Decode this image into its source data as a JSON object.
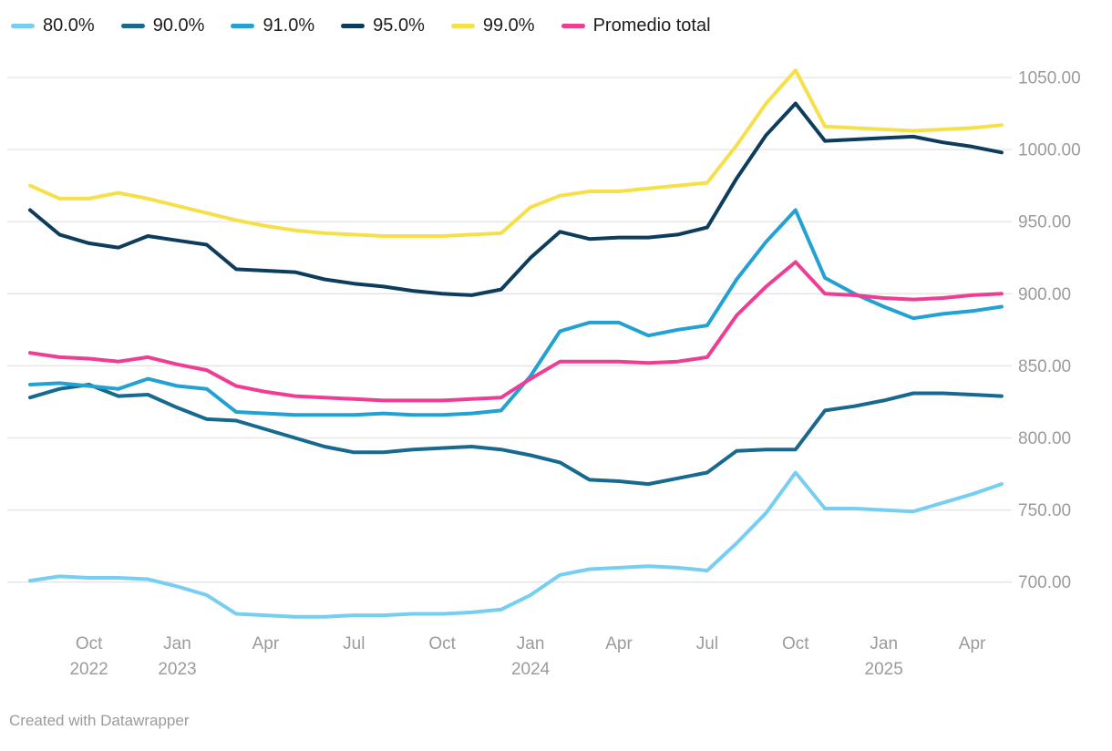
{
  "legend": {
    "items": [
      {
        "label": "80.0%",
        "color": "#76CEF3"
      },
      {
        "label": "90.0%",
        "color": "#17698F"
      },
      {
        "label": "91.0%",
        "color": "#22A1D3"
      },
      {
        "label": "95.0%",
        "color": "#0D3C5C"
      },
      {
        "label": "99.0%",
        "color": "#F6E04A"
      },
      {
        "label": "Promedio total",
        "color": "#EE3D93"
      }
    ]
  },
  "credit": "Created with Datawrapper",
  "style": {
    "gridline_color": "#e4e4e4",
    "axis_label_color": "#9b9b9b",
    "legend_text_color": "#1d1d1d",
    "background": "#ffffff"
  },
  "chart_data": {
    "type": "line",
    "title": "",
    "xlabel": "",
    "ylabel": "",
    "grid": true,
    "legend_position": "top-left",
    "ylim": [
      680,
      1060
    ],
    "y_tick_values": [
      700,
      750,
      800,
      850,
      900,
      950,
      1000,
      1050
    ],
    "y_tick_labels": [
      "700.00",
      "750.00",
      "800.00",
      "850.00",
      "900.00",
      "950.00",
      "1000.00",
      "1050.00"
    ],
    "categories": [
      "Aug 2022",
      "Sep 2022",
      "Oct 2022",
      "Nov 2022",
      "Dec 2022",
      "Jan 2023",
      "Feb 2023",
      "Mar 2023",
      "Apr 2023",
      "May 2023",
      "Jun 2023",
      "Jul 2023",
      "Aug 2023",
      "Sep 2023",
      "Oct 2023",
      "Nov 2023",
      "Dec 2023",
      "Jan 2024",
      "Feb 2024",
      "Mar 2024",
      "Apr 2024",
      "May 2024",
      "Jun 2024",
      "Jul 2024",
      "Aug 2024",
      "Sep 2024",
      "Oct 2024",
      "Nov 2024",
      "Dec 2024",
      "Jan 2025",
      "Feb 2025",
      "Mar 2025",
      "Apr 2025",
      "May 2025"
    ],
    "x_ticks": [
      {
        "index": 2,
        "month": "Oct",
        "year": "2022"
      },
      {
        "index": 5,
        "month": "Jan",
        "year": "2023"
      },
      {
        "index": 8,
        "month": "Apr",
        "year": ""
      },
      {
        "index": 11,
        "month": "Jul",
        "year": ""
      },
      {
        "index": 14,
        "month": "Oct",
        "year": ""
      },
      {
        "index": 17,
        "month": "Jan",
        "year": "2024"
      },
      {
        "index": 20,
        "month": "Apr",
        "year": ""
      },
      {
        "index": 23,
        "month": "Jul",
        "year": ""
      },
      {
        "index": 26,
        "month": "Oct",
        "year": ""
      },
      {
        "index": 29,
        "month": "Jan",
        "year": "2025"
      },
      {
        "index": 32,
        "month": "Apr",
        "year": ""
      }
    ],
    "series": [
      {
        "name": "80.0%",
        "color": "#76CEF3",
        "values": [
          701,
          704,
          703,
          703,
          702,
          697,
          691,
          678,
          677,
          676,
          676,
          677,
          677,
          678,
          678,
          679,
          681,
          691,
          705,
          709,
          710,
          711,
          710,
          708,
          727,
          748,
          776,
          751,
          751,
          750,
          749,
          755,
          761,
          768
        ]
      },
      {
        "name": "90.0%",
        "color": "#17698F",
        "values": [
          828,
          834,
          837,
          829,
          830,
          821,
          813,
          812,
          806,
          800,
          794,
          790,
          790,
          792,
          793,
          794,
          792,
          788,
          783,
          771,
          770,
          768,
          772,
          776,
          791,
          792,
          792,
          819,
          822,
          826,
          831,
          831,
          830,
          829
        ]
      },
      {
        "name": "91.0%",
        "color": "#22A1D3",
        "values": [
          837,
          838,
          836,
          834,
          841,
          836,
          834,
          818,
          817,
          816,
          816,
          816,
          817,
          816,
          816,
          817,
          819,
          843,
          874,
          880,
          880,
          871,
          875,
          878,
          910,
          936,
          958,
          911,
          900,
          891,
          883,
          886,
          888,
          891
        ]
      },
      {
        "name": "95.0%",
        "color": "#0D3C5C",
        "values": [
          958,
          941,
          935,
          932,
          940,
          937,
          934,
          917,
          916,
          915,
          910,
          907,
          905,
          902,
          900,
          899,
          903,
          925,
          943,
          938,
          939,
          939,
          941,
          946,
          980,
          1010,
          1032,
          1006,
          1007,
          1008,
          1009,
          1005,
          1002,
          998
        ]
      },
      {
        "name": "99.0%",
        "color": "#F6E04A",
        "values": [
          975,
          966,
          966,
          970,
          966,
          961,
          956,
          951,
          947,
          944,
          942,
          941,
          940,
          940,
          940,
          941,
          942,
          960,
          968,
          971,
          971,
          973,
          975,
          977,
          1003,
          1032,
          1055,
          1016,
          1015,
          1014,
          1013,
          1014,
          1015,
          1017
        ]
      },
      {
        "name": "Promedio total",
        "color": "#EE3D93",
        "values": [
          859,
          856,
          855,
          853,
          856,
          851,
          847,
          836,
          832,
          829,
          828,
          827,
          826,
          826,
          826,
          827,
          828,
          841,
          853,
          853,
          853,
          852,
          853,
          856,
          885,
          905,
          922,
          900,
          899,
          897,
          896,
          897,
          899,
          900
        ]
      }
    ]
  }
}
